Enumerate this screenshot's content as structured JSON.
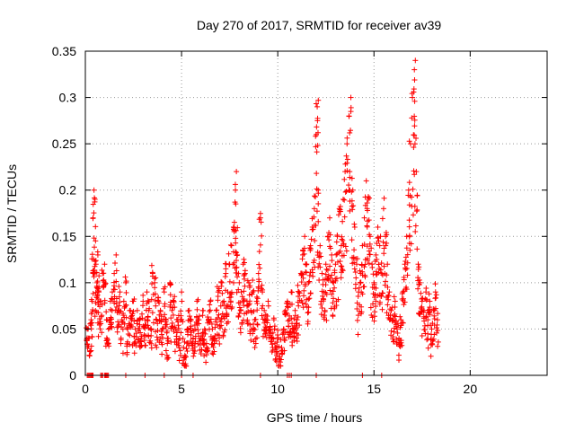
{
  "chart_data": {
    "type": "scatter",
    "title": "Day 270 of 2017, SRMTID for receiver av39",
    "xlabel": "GPS time / hours",
    "ylabel": "SRMTID / TECUs",
    "xlim": [
      0,
      24
    ],
    "ylim": [
      0,
      0.35
    ],
    "xticks": [
      0,
      5,
      10,
      15,
      20
    ],
    "yticks": [
      0,
      0.05,
      0.1,
      0.15,
      0.2,
      0.25,
      0.3,
      0.35
    ],
    "xtick_labels": [
      "0",
      "5",
      "10",
      "15",
      "20"
    ],
    "ytick_labels": [
      "0",
      "0.05",
      "0.1",
      "0.15",
      "0.2",
      "0.25",
      "0.3",
      "0.35"
    ],
    "grid": true,
    "marker": "+",
    "color": "#ff0000",
    "series": [
      {
        "name": "SRMTID",
        "points": [
          [
            0.1,
            0.05
          ],
          [
            0.2,
            0.04
          ],
          [
            0.3,
            0.06
          ],
          [
            0.35,
            0.08
          ],
          [
            0.4,
            0.17
          ],
          [
            0.45,
            0.2
          ],
          [
            0.5,
            0.19
          ],
          [
            0.55,
            0.12
          ],
          [
            0.6,
            0.1
          ],
          [
            0.65,
            0.13
          ],
          [
            0.7,
            0.09
          ],
          [
            0.8,
            0.08
          ],
          [
            0.9,
            0.11
          ],
          [
            1.0,
            0.12
          ],
          [
            1.1,
            0.06
          ],
          [
            1.2,
            0.05
          ],
          [
            1.3,
            0.08
          ],
          [
            1.4,
            0.09
          ],
          [
            1.5,
            0.11
          ],
          [
            1.6,
            0.13
          ],
          [
            1.7,
            0.07
          ],
          [
            1.8,
            0.09
          ],
          [
            1.9,
            0.06
          ],
          [
            2.0,
            0.08
          ],
          [
            2.1,
            0.1
          ],
          [
            2.2,
            0.05
          ],
          [
            2.3,
            0.07
          ],
          [
            2.4,
            0.06
          ],
          [
            2.5,
            0.08
          ],
          [
            2.6,
            0.05
          ],
          [
            2.7,
            0.07
          ],
          [
            2.8,
            0.06
          ],
          [
            2.9,
            0.04
          ],
          [
            3.0,
            0.08
          ],
          [
            3.1,
            0.06
          ],
          [
            3.2,
            0.09
          ],
          [
            3.3,
            0.07
          ],
          [
            3.4,
            0.05
          ],
          [
            3.5,
            0.11
          ],
          [
            3.6,
            0.1
          ],
          [
            3.7,
            0.06
          ],
          [
            3.8,
            0.08
          ],
          [
            3.9,
            0.07
          ],
          [
            4.0,
            0.05
          ],
          [
            4.1,
            0.09
          ],
          [
            4.2,
            0.06
          ],
          [
            4.3,
            0.04
          ],
          [
            4.4,
            0.1
          ],
          [
            4.5,
            0.07
          ],
          [
            4.6,
            0.08
          ],
          [
            4.7,
            0.05
          ],
          [
            4.8,
            0.06
          ],
          [
            4.9,
            0.04
          ],
          [
            5.0,
            0.09
          ],
          [
            5.1,
            0.03
          ],
          [
            5.2,
            0.02
          ],
          [
            5.3,
            0.05
          ],
          [
            5.4,
            0.07
          ],
          [
            5.5,
            0.06
          ],
          [
            5.6,
            0.04
          ],
          [
            5.7,
            0.05
          ],
          [
            5.8,
            0.08
          ],
          [
            5.9,
            0.06
          ],
          [
            6.0,
            0.04
          ],
          [
            6.1,
            0.07
          ],
          [
            6.2,
            0.05
          ],
          [
            6.3,
            0.03
          ],
          [
            6.4,
            0.06
          ],
          [
            6.5,
            0.08
          ],
          [
            6.6,
            0.05
          ],
          [
            6.7,
            0.04
          ],
          [
            6.8,
            0.07
          ],
          [
            6.9,
            0.09
          ],
          [
            7.0,
            0.06
          ],
          [
            7.1,
            0.1
          ],
          [
            7.2,
            0.08
          ],
          [
            7.3,
            0.11
          ],
          [
            7.4,
            0.09
          ],
          [
            7.5,
            0.12
          ],
          [
            7.6,
            0.14
          ],
          [
            7.7,
            0.16
          ],
          [
            7.8,
            0.2
          ],
          [
            7.85,
            0.22
          ],
          [
            7.9,
            0.13
          ],
          [
            8.0,
            0.1
          ],
          [
            8.1,
            0.09
          ],
          [
            8.2,
            0.12
          ],
          [
            8.3,
            0.11
          ],
          [
            8.4,
            0.08
          ],
          [
            8.5,
            0.1
          ],
          [
            8.6,
            0.07
          ],
          [
            8.7,
            0.09
          ],
          [
            8.8,
            0.06
          ],
          [
            8.9,
            0.08
          ],
          [
            9.0,
            0.11
          ],
          [
            9.1,
            0.17
          ],
          [
            9.2,
            0.09
          ],
          [
            9.3,
            0.07
          ],
          [
            9.4,
            0.06
          ],
          [
            9.5,
            0.08
          ],
          [
            9.6,
            0.05
          ],
          [
            9.7,
            0.04
          ],
          [
            9.8,
            0.06
          ],
          [
            9.9,
            0.03
          ],
          [
            10.0,
            0.04
          ],
          [
            10.1,
            0.02
          ],
          [
            10.2,
            0.03
          ],
          [
            10.3,
            0.05
          ],
          [
            10.4,
            0.07
          ],
          [
            10.5,
            0.08
          ],
          [
            10.6,
            0.06
          ],
          [
            10.7,
            0.09
          ],
          [
            10.8,
            0.05
          ],
          [
            10.9,
            0.07
          ],
          [
            11.0,
            0.06
          ],
          [
            11.1,
            0.09
          ],
          [
            11.2,
            0.11
          ],
          [
            11.3,
            0.13
          ],
          [
            11.4,
            0.15
          ],
          [
            11.5,
            0.12
          ],
          [
            11.6,
            0.1
          ],
          [
            11.7,
            0.14
          ],
          [
            11.8,
            0.16
          ],
          [
            11.9,
            0.18
          ],
          [
            12.0,
            0.26
          ],
          [
            12.05,
            0.29
          ],
          [
            12.1,
            0.2
          ],
          [
            12.2,
            0.14
          ],
          [
            12.3,
            0.11
          ],
          [
            12.4,
            0.09
          ],
          [
            12.5,
            0.12
          ],
          [
            12.6,
            0.15
          ],
          [
            12.7,
            0.17
          ],
          [
            12.8,
            0.13
          ],
          [
            12.9,
            0.1
          ],
          [
            13.0,
            0.12
          ],
          [
            13.1,
            0.15
          ],
          [
            13.2,
            0.18
          ],
          [
            13.3,
            0.14
          ],
          [
            13.4,
            0.19
          ],
          [
            13.5,
            0.22
          ],
          [
            13.6,
            0.25
          ],
          [
            13.7,
            0.28
          ],
          [
            13.8,
            0.3
          ],
          [
            13.9,
            0.2
          ],
          [
            14.0,
            0.16
          ],
          [
            14.1,
            0.12
          ],
          [
            14.2,
            0.09
          ],
          [
            14.3,
            0.11
          ],
          [
            14.4,
            0.14
          ],
          [
            14.5,
            0.17
          ],
          [
            14.6,
            0.21
          ],
          [
            14.7,
            0.19
          ],
          [
            14.8,
            0.15
          ],
          [
            14.9,
            0.12
          ],
          [
            15.0,
            0.1
          ],
          [
            15.1,
            0.13
          ],
          [
            15.2,
            0.16
          ],
          [
            15.3,
            0.14
          ],
          [
            15.4,
            0.11
          ],
          [
            15.5,
            0.18
          ],
          [
            15.6,
            0.15
          ],
          [
            15.7,
            0.12
          ],
          [
            15.8,
            0.09
          ],
          [
            15.9,
            0.07
          ],
          [
            16.0,
            0.06
          ],
          [
            16.1,
            0.08
          ],
          [
            16.2,
            0.05
          ],
          [
            16.3,
            0.04
          ],
          [
            16.4,
            0.06
          ],
          [
            16.5,
            0.09
          ],
          [
            16.6,
            0.12
          ],
          [
            16.7,
            0.15
          ],
          [
            16.8,
            0.2
          ],
          [
            16.9,
            0.25
          ],
          [
            17.0,
            0.3
          ],
          [
            17.1,
            0.33
          ],
          [
            17.15,
            0.34
          ],
          [
            17.2,
            0.22
          ],
          [
            17.3,
            0.12
          ],
          [
            17.4,
            0.1
          ],
          [
            17.5,
            0.08
          ],
          [
            17.6,
            0.07
          ],
          [
            17.7,
            0.09
          ],
          [
            17.8,
            0.06
          ],
          [
            17.9,
            0.08
          ],
          [
            18.0,
            0.05
          ],
          [
            18.1,
            0.07
          ],
          [
            18.2,
            0.09
          ],
          [
            18.3,
            0.06
          ]
        ]
      }
    ],
    "zero_points_x": [
      0.1,
      0.15,
      0.2,
      0.25,
      0.3,
      0.35,
      0.4,
      0.8,
      0.85,
      0.9,
      1.0,
      1.05,
      1.1,
      1.15,
      1.2,
      2.1,
      3.1,
      4.1,
      5.0,
      5.6,
      9.1,
      10.5,
      10.6,
      10.7,
      12.0,
      14.4,
      15.4
    ]
  }
}
